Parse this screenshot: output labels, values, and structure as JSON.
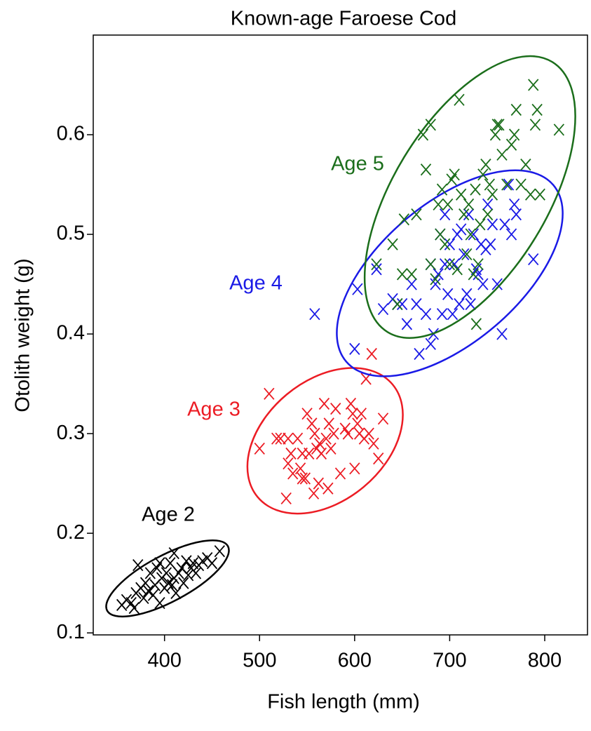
{
  "chart_data": {
    "type": "scatter",
    "title": "Known-age Faroese Cod",
    "x_label": "Fish length (mm)",
    "y_label": "Otolith weight (g)",
    "xlim": [
      325,
      845
    ],
    "ylim": [
      0.098,
      0.7
    ],
    "xticks": [
      400,
      500,
      600,
      700,
      800
    ],
    "yticks": [
      0.1,
      0.2,
      0.3,
      0.4,
      0.5,
      0.6
    ],
    "series": [
      {
        "name": "Age 2",
        "color": "#000000",
        "x": [
          355,
          360,
          365,
          370,
          372,
          375,
          378,
          380,
          383,
          385,
          388,
          390,
          392,
          395,
          397,
          400,
          402,
          404,
          406,
          408,
          410,
          412,
          415,
          418,
          420,
          423,
          425,
          428,
          430,
          433,
          436,
          440,
          445,
          450,
          458,
          368,
          395,
          410
        ],
        "values": [
          0.128,
          0.133,
          0.13,
          0.14,
          0.168,
          0.145,
          0.135,
          0.15,
          0.142,
          0.16,
          0.138,
          0.148,
          0.165,
          0.13,
          0.155,
          0.145,
          0.16,
          0.15,
          0.17,
          0.148,
          0.155,
          0.14,
          0.16,
          0.165,
          0.15,
          0.172,
          0.158,
          0.165,
          0.17,
          0.16,
          0.168,
          0.172,
          0.175,
          0.17,
          0.182,
          0.125,
          0.17,
          0.18
        ]
      },
      {
        "name": "Age 3",
        "color": "#ec1c24",
        "x": [
          500,
          510,
          518,
          522,
          528,
          530,
          530,
          533,
          535,
          540,
          543,
          545,
          548,
          550,
          552,
          555,
          557,
          558,
          560,
          562,
          563,
          565,
          568,
          570,
          573,
          575,
          578,
          580,
          585,
          590,
          593,
          596,
          598,
          600,
          603,
          605,
          607,
          610,
          612,
          615,
          618,
          620,
          625,
          630,
          572,
          545
        ],
        "values": [
          0.285,
          0.34,
          0.295,
          0.295,
          0.235,
          0.295,
          0.27,
          0.28,
          0.26,
          0.295,
          0.265,
          0.255,
          0.255,
          0.32,
          0.28,
          0.31,
          0.24,
          0.3,
          0.285,
          0.25,
          0.29,
          0.28,
          0.33,
          0.295,
          0.31,
          0.285,
          0.3,
          0.325,
          0.26,
          0.305,
          0.3,
          0.33,
          0.32,
          0.265,
          0.31,
          0.3,
          0.32,
          0.295,
          0.355,
          0.3,
          0.38,
          0.29,
          0.275,
          0.315,
          0.245,
          0.28
        ]
      },
      {
        "name": "Age 4",
        "color": "#1a1ae6",
        "x": [
          558,
          600,
          603,
          623,
          630,
          640,
          645,
          650,
          655,
          660,
          665,
          668,
          675,
          680,
          683,
          685,
          688,
          690,
          692,
          695,
          698,
          700,
          703,
          705,
          708,
          710,
          712,
          715,
          718,
          720,
          722,
          725,
          728,
          730,
          733,
          735,
          738,
          740,
          743,
          745,
          750,
          755,
          758,
          762,
          765,
          768,
          770,
          788,
          680,
          695
        ],
        "values": [
          0.42,
          0.385,
          0.445,
          0.465,
          0.425,
          0.435,
          0.43,
          0.43,
          0.41,
          0.45,
          0.43,
          0.38,
          0.42,
          0.39,
          0.4,
          0.45,
          0.46,
          0.5,
          0.42,
          0.47,
          0.44,
          0.49,
          0.42,
          0.47,
          0.5,
          0.43,
          0.505,
          0.48,
          0.44,
          0.52,
          0.43,
          0.5,
          0.465,
          0.46,
          0.49,
          0.45,
          0.485,
          0.53,
          0.49,
          0.51,
          0.45,
          0.4,
          0.51,
          0.55,
          0.5,
          0.53,
          0.52,
          0.475,
          0.47,
          0.52
        ]
      },
      {
        "name": "Age 5",
        "color": "#1b6e1b",
        "x": [
          623,
          640,
          645,
          650,
          652,
          660,
          665,
          672,
          675,
          680,
          685,
          688,
          690,
          692,
          695,
          698,
          700,
          702,
          705,
          708,
          710,
          712,
          715,
          718,
          720,
          722,
          725,
          727,
          730,
          732,
          735,
          738,
          740,
          742,
          745,
          748,
          750,
          752,
          755,
          760,
          765,
          768,
          770,
          775,
          780,
          785,
          788,
          790,
          792,
          795,
          815,
          680,
          728
        ],
        "values": [
          0.47,
          0.49,
          0.43,
          0.46,
          0.515,
          0.46,
          0.52,
          0.6,
          0.565,
          0.47,
          0.455,
          0.53,
          0.5,
          0.545,
          0.49,
          0.53,
          0.47,
          0.555,
          0.56,
          0.465,
          0.635,
          0.54,
          0.52,
          0.48,
          0.53,
          0.5,
          0.46,
          0.545,
          0.47,
          0.51,
          0.56,
          0.57,
          0.52,
          0.55,
          0.54,
          0.6,
          0.61,
          0.61,
          0.58,
          0.55,
          0.59,
          0.6,
          0.625,
          0.55,
          0.57,
          0.54,
          0.65,
          0.61,
          0.625,
          0.54,
          0.605,
          0.61,
          0.41
        ]
      }
    ]
  }
}
